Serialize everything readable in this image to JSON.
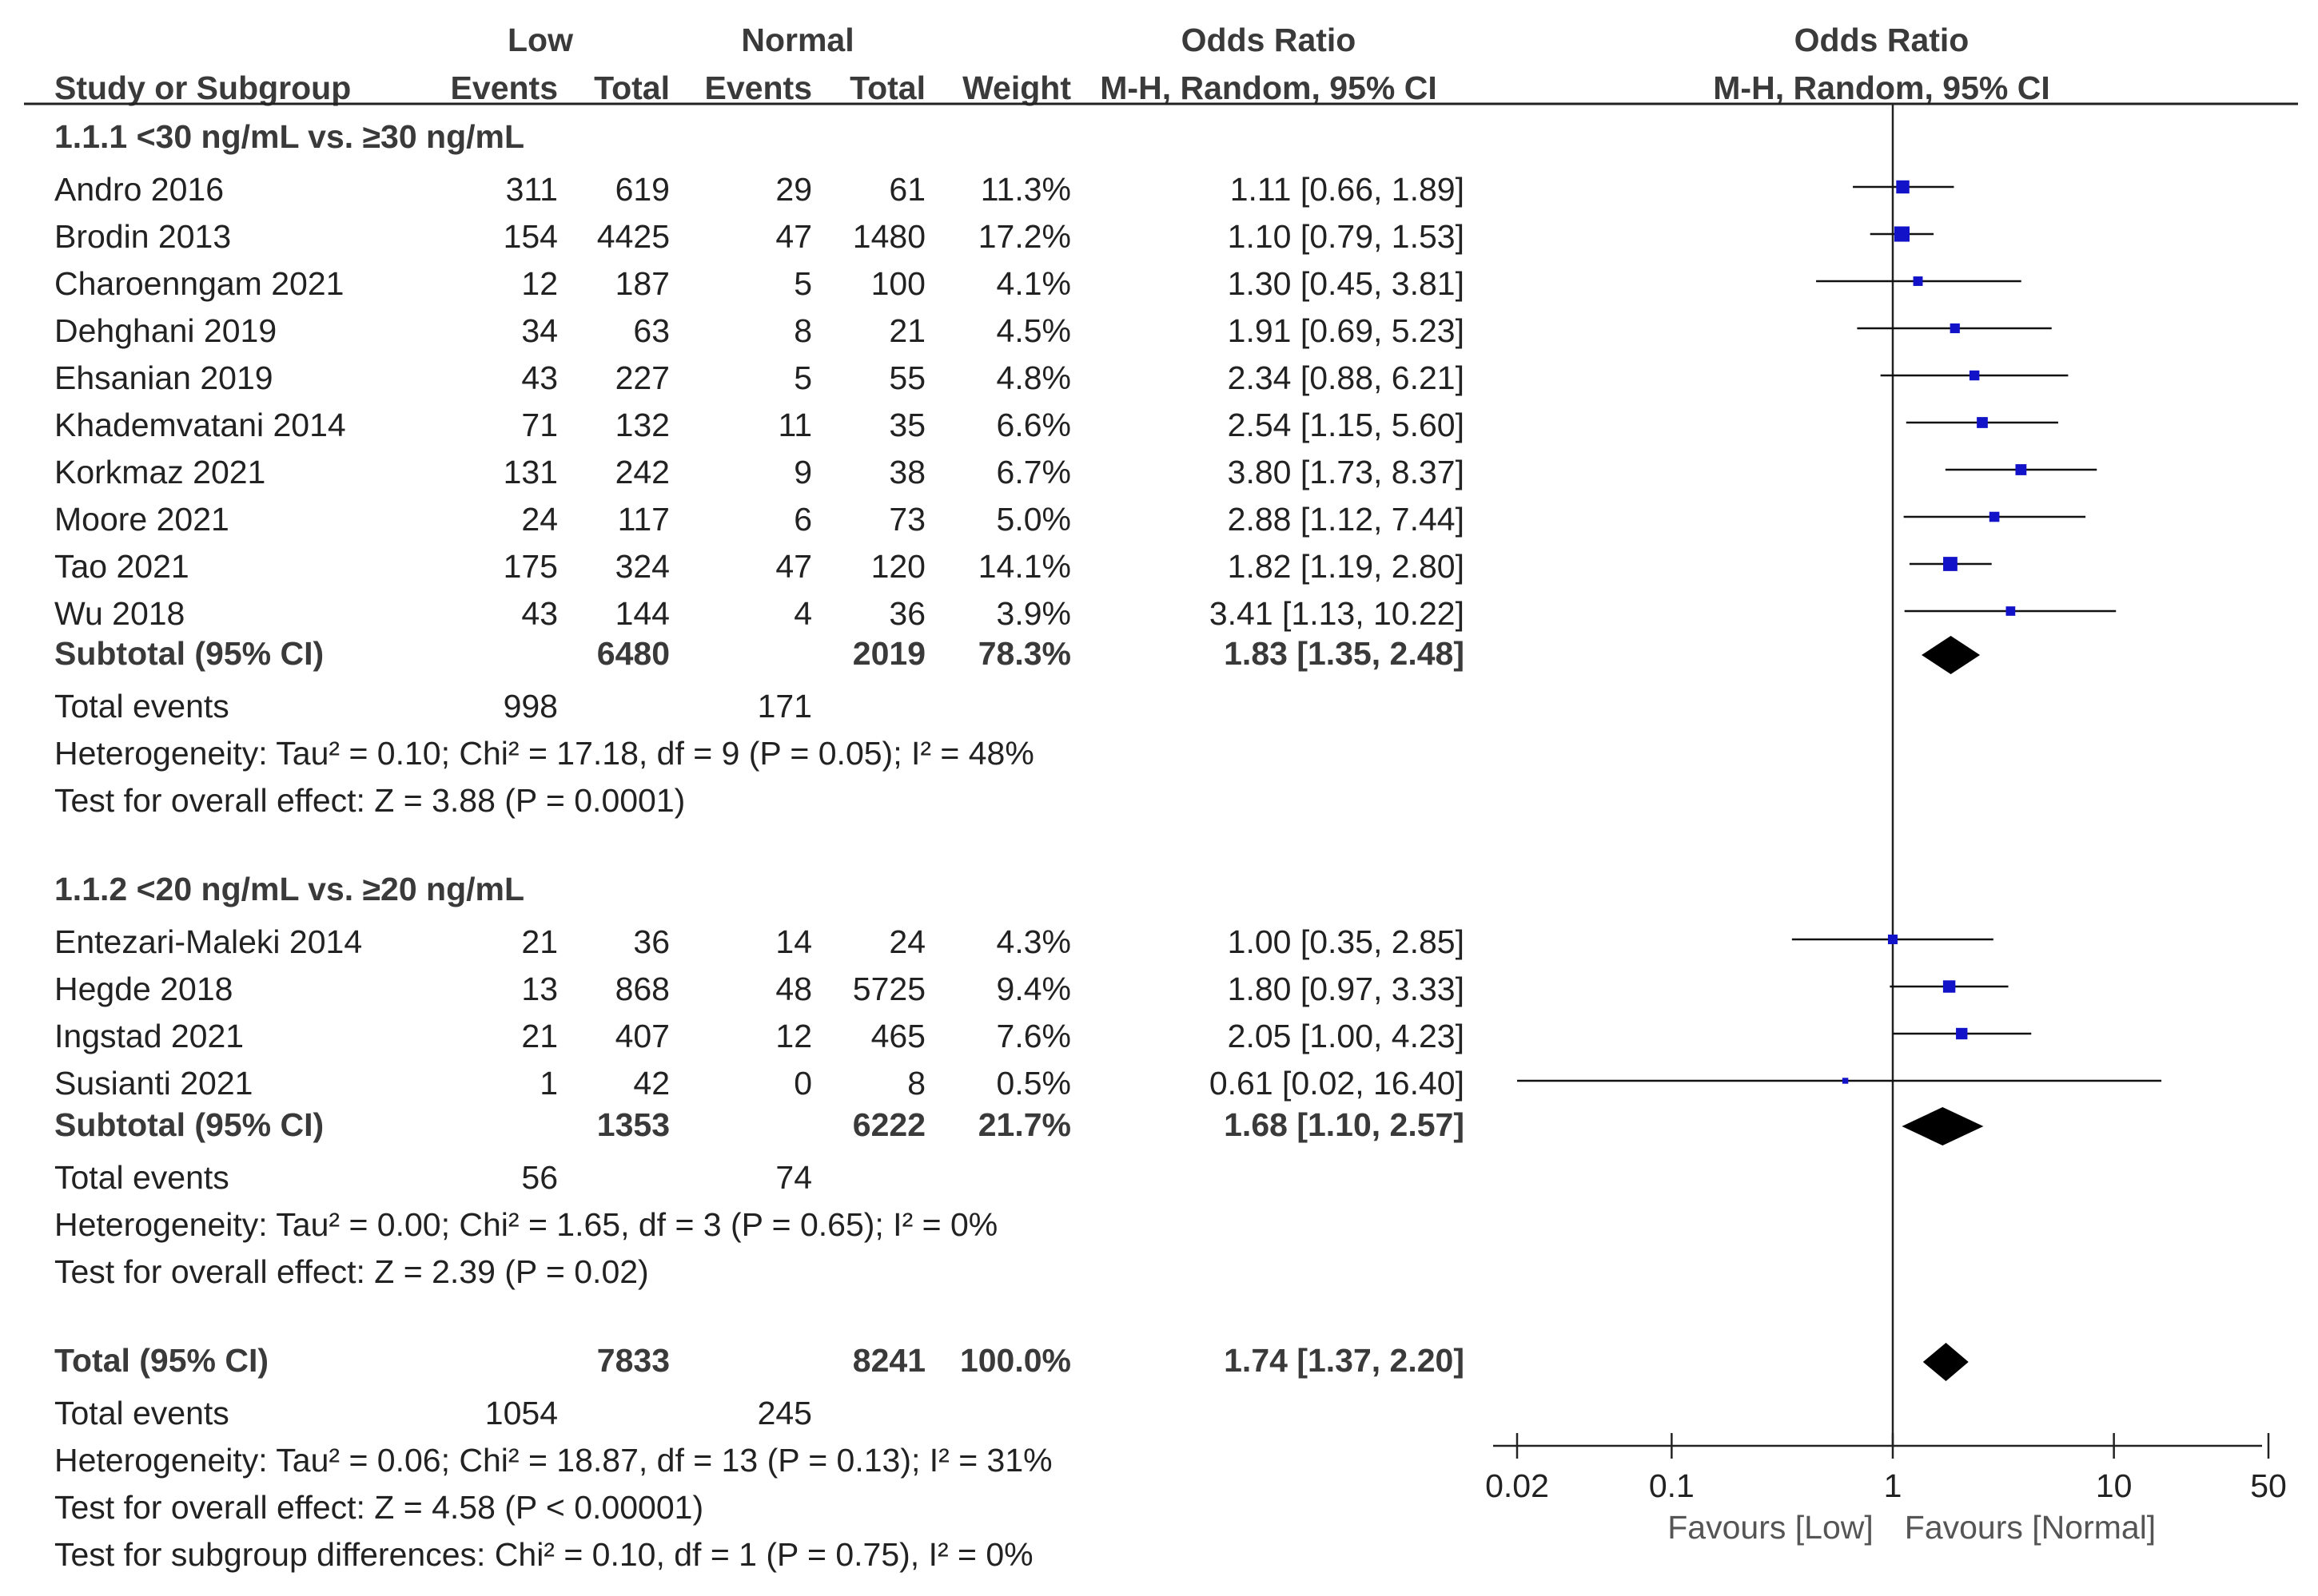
{
  "chart_data": {
    "type": "forest",
    "headers": {
      "group_low": "Low",
      "group_normal": "Normal",
      "or_text_top": "Odds Ratio",
      "or_plot_top": "Odds Ratio",
      "study_col": "Study or Subgroup",
      "events1": "Events",
      "total1": "Total",
      "events2": "Events",
      "total2": "Total",
      "weight": "Weight",
      "ci_text": "M-H, Random, 95% CI",
      "ci_plot": "M-H, Random, 95% CI"
    },
    "subgroups": [
      {
        "title": "1.1.1 <30 ng/mL vs. ≥30 ng/mL",
        "studies": [
          {
            "name": "Andro 2016",
            "e1": "311",
            "t1": "619",
            "e2": "29",
            "t2": "61",
            "weight": "11.3%",
            "ci_text": "1.11 [0.66, 1.89]",
            "or": 1.11,
            "lo": 0.66,
            "hi": 1.89,
            "w": 11.3
          },
          {
            "name": "Brodin 2013",
            "e1": "154",
            "t1": "4425",
            "e2": "47",
            "t2": "1480",
            "weight": "17.2%",
            "ci_text": "1.10 [0.79, 1.53]",
            "or": 1.1,
            "lo": 0.79,
            "hi": 1.53,
            "w": 17.2
          },
          {
            "name": "Charoenngam 2021",
            "e1": "12",
            "t1": "187",
            "e2": "5",
            "t2": "100",
            "weight": "4.1%",
            "ci_text": "1.30 [0.45, 3.81]",
            "or": 1.3,
            "lo": 0.45,
            "hi": 3.81,
            "w": 4.1
          },
          {
            "name": "Dehghani 2019",
            "e1": "34",
            "t1": "63",
            "e2": "8",
            "t2": "21",
            "weight": "4.5%",
            "ci_text": "1.91 [0.69, 5.23]",
            "or": 1.91,
            "lo": 0.69,
            "hi": 5.23,
            "w": 4.5
          },
          {
            "name": "Ehsanian 2019",
            "e1": "43",
            "t1": "227",
            "e2": "5",
            "t2": "55",
            "weight": "4.8%",
            "ci_text": "2.34 [0.88, 6.21]",
            "or": 2.34,
            "lo": 0.88,
            "hi": 6.21,
            "w": 4.8
          },
          {
            "name": "Khademvatani 2014",
            "e1": "71",
            "t1": "132",
            "e2": "11",
            "t2": "35",
            "weight": "6.6%",
            "ci_text": "2.54 [1.15, 5.60]",
            "or": 2.54,
            "lo": 1.15,
            "hi": 5.6,
            "w": 6.6
          },
          {
            "name": "Korkmaz 2021",
            "e1": "131",
            "t1": "242",
            "e2": "9",
            "t2": "38",
            "weight": "6.7%",
            "ci_text": "3.80 [1.73, 8.37]",
            "or": 3.8,
            "lo": 1.73,
            "hi": 8.37,
            "w": 6.7
          },
          {
            "name": "Moore 2021",
            "e1": "24",
            "t1": "117",
            "e2": "6",
            "t2": "73",
            "weight": "5.0%",
            "ci_text": "2.88 [1.12, 7.44]",
            "or": 2.88,
            "lo": 1.12,
            "hi": 7.44,
            "w": 5.0
          },
          {
            "name": "Tao 2021",
            "e1": "175",
            "t1": "324",
            "e2": "47",
            "t2": "120",
            "weight": "14.1%",
            "ci_text": "1.82 [1.19, 2.80]",
            "or": 1.82,
            "lo": 1.19,
            "hi": 2.8,
            "w": 14.1
          },
          {
            "name": "Wu 2018",
            "e1": "43",
            "t1": "144",
            "e2": "4",
            "t2": "36",
            "weight": "3.9%",
            "ci_text": "3.41 [1.13, 10.22]",
            "or": 3.41,
            "lo": 1.13,
            "hi": 10.22,
            "w": 3.9
          }
        ],
        "subtotal": {
          "label": "Subtotal (95% CI)",
          "t1": "6480",
          "t2": "2019",
          "weight": "78.3%",
          "ci_text": "1.83 [1.35, 2.48]",
          "or": 1.83,
          "lo": 1.35,
          "hi": 2.48
        },
        "total_events": {
          "label": "Total events",
          "e1": "998",
          "e2": "171"
        },
        "heterogeneity": "Heterogeneity: Tau² = 0.10; Chi² = 17.18, df = 9 (P = 0.05); I² = 48%",
        "overall": "Test for overall effect: Z = 3.88 (P = 0.0001)"
      },
      {
        "title": "1.1.2 <20 ng/mL vs. ≥20 ng/mL",
        "studies": [
          {
            "name": "Entezari-Maleki 2014",
            "e1": "21",
            "t1": "36",
            "e2": "14",
            "t2": "24",
            "weight": "4.3%",
            "ci_text": "1.00 [0.35, 2.85]",
            "or": 1.0,
            "lo": 0.35,
            "hi": 2.85,
            "w": 4.3
          },
          {
            "name": "Hegde 2018",
            "e1": "13",
            "t1": "868",
            "e2": "48",
            "t2": "5725",
            "weight": "9.4%",
            "ci_text": "1.80 [0.97, 3.33]",
            "or": 1.8,
            "lo": 0.97,
            "hi": 3.33,
            "w": 9.4
          },
          {
            "name": "Ingstad 2021",
            "e1": "21",
            "t1": "407",
            "e2": "12",
            "t2": "465",
            "weight": "7.6%",
            "ci_text": "2.05 [1.00, 4.23]",
            "or": 2.05,
            "lo": 1.0,
            "hi": 4.23,
            "w": 7.6
          },
          {
            "name": "Susianti 2021",
            "e1": "1",
            "t1": "42",
            "e2": "0",
            "t2": "8",
            "weight": "0.5%",
            "ci_text": "0.61 [0.02, 16.40]",
            "or": 0.61,
            "lo": 0.02,
            "hi": 16.4,
            "w": 0.5
          }
        ],
        "subtotal": {
          "label": "Subtotal (95% CI)",
          "t1": "1353",
          "t2": "6222",
          "weight": "21.7%",
          "ci_text": "1.68 [1.10, 2.57]",
          "or": 1.68,
          "lo": 1.1,
          "hi": 2.57
        },
        "total_events": {
          "label": "Total events",
          "e1": "56",
          "e2": "74"
        },
        "heterogeneity": "Heterogeneity: Tau² = 0.00; Chi² = 1.65, df = 3 (P = 0.65); I² = 0%",
        "overall": "Test for overall effect: Z = 2.39 (P = 0.02)"
      }
    ],
    "total": {
      "label": "Total (95% CI)",
      "t1": "7833",
      "t2": "8241",
      "weight": "100.0%",
      "ci_text": "1.74 [1.37, 2.20]",
      "or": 1.74,
      "lo": 1.37,
      "hi": 2.2
    },
    "total_events": {
      "label": "Total events",
      "e1": "1054",
      "e2": "245"
    },
    "heterogeneity": "Heterogeneity: Tau² = 0.06; Chi² = 18.87, df = 13 (P = 0.13); I² = 31%",
    "overall": "Test for overall effect: Z = 4.58 (P < 0.00001)",
    "subgroup_diff": "Test for subgroup differences: Chi² = 0.10, df = 1 (P = 0.75), I² = 0%",
    "axis": {
      "scale": "log",
      "range": [
        0.02,
        50
      ],
      "ticks": [
        0.02,
        0.1,
        1,
        10,
        50
      ],
      "tick_labels": [
        "0.02",
        "0.1",
        "1",
        "10",
        "50"
      ],
      "favours_left": "Favours [Low]",
      "favours_right": "Favours [Normal]"
    },
    "colors": {
      "square": "#1212c8",
      "diamond": "#000000",
      "text": "#222222",
      "bold_text": "#3a3a3a"
    }
  }
}
